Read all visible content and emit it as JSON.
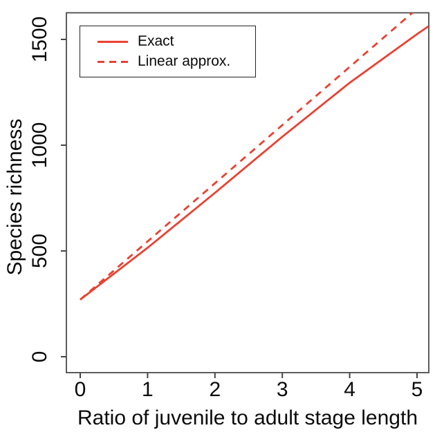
{
  "chart_data": {
    "type": "line",
    "title": "",
    "xlabel": "Ratio of juvenile to adult stage length",
    "ylabel": "Species richness",
    "x_ticks": [
      "0",
      "1",
      "2",
      "3",
      "4",
      "5"
    ],
    "x_tick_values": [
      0,
      1,
      2,
      3,
      4,
      5
    ],
    "y_ticks": [
      "0",
      "500",
      "1000",
      "1500"
    ],
    "y_tick_values": [
      0,
      500,
      1000,
      1500
    ],
    "xlim": [
      -0.2,
      5.17
    ],
    "ylim": [
      -80,
      1630
    ],
    "grid": false,
    "line_color": "#EA4030",
    "frame_color": "#4a4a4a",
    "legend": {
      "position": "top-left",
      "entries": [
        {
          "label": "Exact",
          "style": "solid"
        },
        {
          "label": "Linear approx.",
          "style": "dashed"
        }
      ]
    },
    "series": [
      {
        "name": "Exact",
        "style": "solid",
        "x": [
          0,
          1,
          2,
          3,
          4,
          5,
          5.17
        ],
        "values": [
          270,
          515,
          775,
          1040,
          1295,
          1525,
          1562
        ]
      },
      {
        "name": "Linear approx.",
        "style": "dashed",
        "x": [
          0,
          1,
          2,
          3,
          4,
          5,
          5.17
        ],
        "values": [
          270,
          545,
          820,
          1095,
          1370,
          1645,
          1692
        ]
      }
    ]
  }
}
